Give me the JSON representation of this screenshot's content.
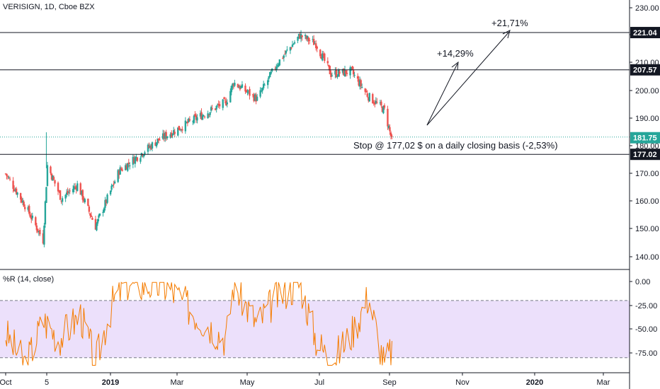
{
  "header": {
    "symbol_line": "VERISIGN, 1D, Cboe BZX",
    "indicator_label": "%R (14, close)"
  },
  "annotations": {
    "target1": "+14,29%",
    "target2": "+21,71%",
    "stop_text": "Stop @ 177,02 $ on a daily closing basis (-2,53%)"
  },
  "colors": {
    "up": "#26a69a",
    "down": "#ef5350",
    "wr_line": "#f57c00",
    "wr_band": "#ece0fb",
    "badge_bg": "#131722"
  },
  "chart_data": [
    {
      "type": "candlestick",
      "title": "VERISIGN, 1D, Cboe BZX",
      "x_ticks": [
        "Oct",
        "5",
        "2019",
        "Mar",
        "May",
        "Jul",
        "Sep",
        "Nov",
        "2020",
        "Mar"
      ],
      "y_ticks": [
        "140.00",
        "150.00",
        "160.00",
        "170.00",
        "180.00",
        "190.00",
        "200.00",
        "210.00",
        "220.00",
        "230.00"
      ],
      "ylim": [
        135,
        232
      ],
      "grid": false,
      "horizontal_lines": [
        {
          "label": "221.04",
          "value": 221.04
        },
        {
          "label": "207.57",
          "value": 207.57
        },
        {
          "label": "177.02",
          "value": 177.02
        }
      ],
      "last_price": {
        "label": "181.75",
        "value": 181.75
      },
      "path_points": [
        [
          "2018-10-01",
          170
        ],
        [
          "2018-10-20",
          158
        ],
        [
          "2018-11-05",
          146
        ],
        [
          "2018-11-09",
          173
        ],
        [
          "2018-11-22",
          161
        ],
        [
          "2018-12-07",
          166
        ],
        [
          "2018-12-24",
          151
        ],
        [
          "2019-01-15",
          171
        ],
        [
          "2019-02-20",
          182
        ],
        [
          "2019-03-28",
          190
        ],
        [
          "2019-04-25",
          196
        ],
        [
          "2019-05-02",
          203
        ],
        [
          "2019-05-24",
          197
        ],
        [
          "2019-06-12",
          210
        ],
        [
          "2019-07-03",
          220
        ],
        [
          "2019-07-18",
          217
        ],
        [
          "2019-08-01",
          206
        ],
        [
          "2019-08-20",
          207
        ],
        [
          "2019-09-05",
          198
        ],
        [
          "2019-09-20",
          193
        ],
        [
          "2019-09-27",
          182
        ]
      ]
    },
    {
      "type": "line",
      "title": "%R (14, close)",
      "y_ticks": [
        "0.00",
        "-25.00",
        "-50.00",
        "-75.00"
      ],
      "ylim": [
        -90,
        5
      ],
      "levels": [
        -20,
        -80
      ],
      "path_points": [
        [
          "2018-10-01",
          -55
        ],
        [
          "2018-10-20",
          -88
        ],
        [
          "2018-11-05",
          -40
        ],
        [
          "2018-11-20",
          -60
        ],
        [
          "2018-12-10",
          -35
        ],
        [
          "2018-12-24",
          -85
        ],
        [
          "2019-01-08",
          -25
        ],
        [
          "2019-01-20",
          -2
        ],
        [
          "2019-03-01",
          -5
        ],
        [
          "2019-03-28",
          -35
        ],
        [
          "2019-04-25",
          -60
        ],
        [
          "2019-05-02",
          -3
        ],
        [
          "2019-05-24",
          -45
        ],
        [
          "2019-06-12",
          -15
        ],
        [
          "2019-07-03",
          -2
        ],
        [
          "2019-07-18",
          -60
        ],
        [
          "2019-08-01",
          -85
        ],
        [
          "2019-08-20",
          -55
        ],
        [
          "2019-09-05",
          -15
        ],
        [
          "2019-09-20",
          -88
        ],
        [
          "2019-09-27",
          -70
        ]
      ]
    }
  ]
}
